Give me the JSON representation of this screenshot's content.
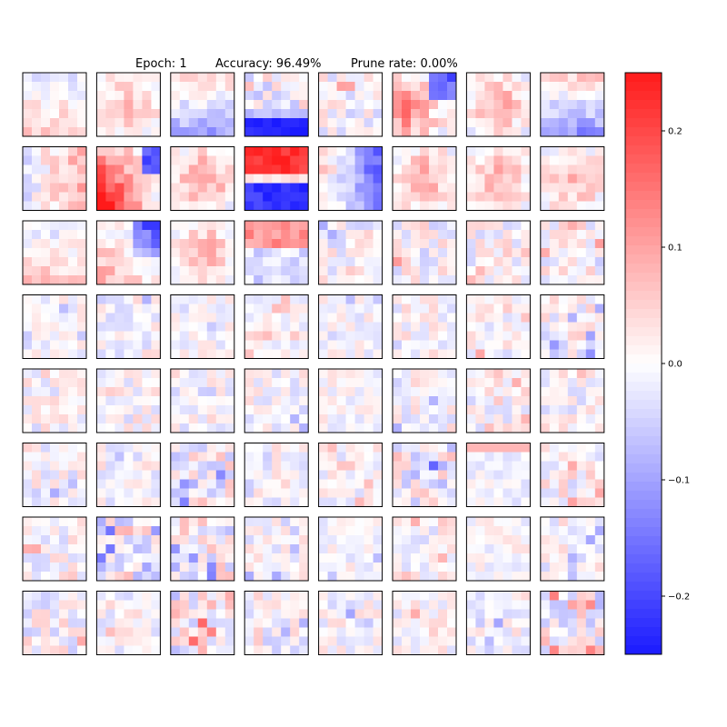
{
  "chart_data": {
    "type": "heatmap",
    "title": {
      "epoch": "Epoch: 1",
      "accuracy": "Accuracy: 96.49%",
      "prune_rate": "Prune rate: 0.00%"
    },
    "grid": {
      "rows": 8,
      "cols": 8,
      "kernel_size": 7
    },
    "colormap": {
      "low": "#1a1aff",
      "mid": "#ffffff",
      "high": "#ff1a1a"
    },
    "colorbar": {
      "vmin": -0.25,
      "vmax": 0.25,
      "ticks": [
        0.2,
        0.1,
        0.0,
        -0.1,
        -0.2
      ],
      "tick_labels": [
        "0.2",
        "0.1",
        "0.0",
        "−0.1",
        "−0.2"
      ]
    },
    "kernels": [
      {
        "id": 0,
        "pattern": "gradient-v",
        "strength": 0.05
      },
      {
        "id": 1,
        "pattern": "blob",
        "strength": 0.07
      },
      {
        "id": 2,
        "pattern": "gradient-v",
        "strength": -0.1
      },
      {
        "id": 3,
        "pattern": "bottom-band",
        "strength": -0.24
      },
      {
        "id": 4,
        "pattern": "random",
        "strength": 0.05
      },
      {
        "id": 5,
        "pattern": "blob-left",
        "strength": 0.12
      },
      {
        "id": 6,
        "pattern": "blob",
        "strength": 0.09
      },
      {
        "id": 7,
        "pattern": "gradient-v",
        "strength": -0.12
      },
      {
        "id": 8,
        "pattern": "gradient-h",
        "strength": 0.08
      },
      {
        "id": 9,
        "pattern": "diag",
        "strength": 0.22
      },
      {
        "id": 10,
        "pattern": "blob",
        "strength": 0.11
      },
      {
        "id": 11,
        "pattern": "split",
        "strength": 0.22
      },
      {
        "id": 12,
        "pattern": "gradient-h",
        "strength": -0.16
      },
      {
        "id": 13,
        "pattern": "blob",
        "strength": 0.1
      },
      {
        "id": 14,
        "pattern": "blob",
        "strength": 0.08
      },
      {
        "id": 15,
        "pattern": "blob",
        "strength": 0.09
      },
      {
        "id": 16,
        "pattern": "gradient-v",
        "strength": 0.06
      },
      {
        "id": 17,
        "pattern": "corner",
        "strength": -0.22
      },
      {
        "id": 18,
        "pattern": "blob",
        "strength": 0.09
      },
      {
        "id": 19,
        "pattern": "split-top",
        "strength": 0.12
      },
      {
        "id": 20,
        "pattern": "random",
        "strength": -0.05
      },
      {
        "id": 21,
        "pattern": "random",
        "strength": 0.05
      },
      {
        "id": 22,
        "pattern": "random",
        "strength": 0.04
      },
      {
        "id": 23,
        "pattern": "random",
        "strength": 0.05
      },
      {
        "id": 24,
        "pattern": "random",
        "strength": -0.03
      },
      {
        "id": 25,
        "pattern": "random",
        "strength": -0.04
      },
      {
        "id": 26,
        "pattern": "random",
        "strength": -0.03
      },
      {
        "id": 27,
        "pattern": "random",
        "strength": 0.03
      },
      {
        "id": 28,
        "pattern": "random",
        "strength": -0.03
      },
      {
        "id": 29,
        "pattern": "random",
        "strength": -0.04
      },
      {
        "id": 30,
        "pattern": "random",
        "strength": 0.04
      },
      {
        "id": 31,
        "pattern": "random",
        "strength": -0.05
      },
      {
        "id": 32,
        "pattern": "random",
        "strength": 0.04
      },
      {
        "id": 33,
        "pattern": "random",
        "strength": 0.04
      },
      {
        "id": 34,
        "pattern": "random",
        "strength": -0.04
      },
      {
        "id": 35,
        "pattern": "random",
        "strength": -0.04
      },
      {
        "id": 36,
        "pattern": "random",
        "strength": 0.03
      },
      {
        "id": 37,
        "pattern": "random",
        "strength": -0.04
      },
      {
        "id": 38,
        "pattern": "random",
        "strength": 0.04
      },
      {
        "id": 39,
        "pattern": "random",
        "strength": 0.04
      },
      {
        "id": 40,
        "pattern": "random",
        "strength": -0.04
      },
      {
        "id": 41,
        "pattern": "random",
        "strength": -0.04
      },
      {
        "id": 42,
        "pattern": "random",
        "strength": -0.06
      },
      {
        "id": 43,
        "pattern": "random",
        "strength": -0.04
      },
      {
        "id": 44,
        "pattern": "random",
        "strength": 0.04
      },
      {
        "id": 45,
        "pattern": "random",
        "strength": -0.07
      },
      {
        "id": 46,
        "pattern": "top-band",
        "strength": 0.09
      },
      {
        "id": 47,
        "pattern": "random",
        "strength": 0.05
      },
      {
        "id": 48,
        "pattern": "random",
        "strength": 0.04
      },
      {
        "id": 49,
        "pattern": "random",
        "strength": -0.07
      },
      {
        "id": 50,
        "pattern": "random",
        "strength": -0.06
      },
      {
        "id": 51,
        "pattern": "random",
        "strength": -0.04
      },
      {
        "id": 52,
        "pattern": "random",
        "strength": -0.03
      },
      {
        "id": 53,
        "pattern": "random",
        "strength": 0.04
      },
      {
        "id": 54,
        "pattern": "random",
        "strength": -0.03
      },
      {
        "id": 55,
        "pattern": "random",
        "strength": -0.04
      },
      {
        "id": 56,
        "pattern": "random",
        "strength": 0.05
      },
      {
        "id": 57,
        "pattern": "random",
        "strength": 0.04
      },
      {
        "id": 58,
        "pattern": "random",
        "strength": 0.07
      },
      {
        "id": 59,
        "pattern": "random",
        "strength": -0.05
      },
      {
        "id": 60,
        "pattern": "random",
        "strength": -0.04
      },
      {
        "id": 61,
        "pattern": "random",
        "strength": 0.04
      },
      {
        "id": 62,
        "pattern": "random",
        "strength": -0.04
      },
      {
        "id": 63,
        "pattern": "random",
        "strength": 0.07
      }
    ]
  }
}
